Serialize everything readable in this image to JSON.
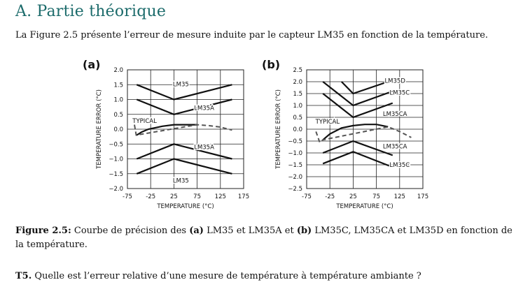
{
  "section_heading": "A. Partie théorique",
  "intro_text": "La Figure 2.5 présente l’erreur de mesure induite par le capteur LM35 en fonction de la température.",
  "caption": {
    "label": "Figure 2.5:",
    "text_1": " Courbe de précision des ",
    "a": "(a)",
    "text_2": " LM35 et LM35A et ",
    "b": "(b)",
    "text_3": " LM35C, LM35CA et LM35D en fonction de la température."
  },
  "question": {
    "label": "T5.",
    "text": " Quelle est l’erreur relative d’une mesure de température à température ambiante ?"
  },
  "chart_data": [
    {
      "panel_label": "(a)",
      "type": "line",
      "xlabel": "TEMPERATURE (°C)",
      "ylabel": "TEMPERATURE ERROR (°C)",
      "xlim": [
        -75,
        175
      ],
      "ylim": [
        -2.0,
        2.0
      ],
      "xticks": [
        -75,
        -25,
        25,
        75,
        125,
        175
      ],
      "yticks": [
        -2.0,
        -1.5,
        -1.0,
        -0.5,
        0.0,
        0.5,
        1.0,
        1.5,
        2.0
      ],
      "ytick_labels": [
        "−2.0",
        "−1.5",
        "−1.0",
        "−0.5",
        "0.0",
        "0.5",
        "1.0",
        "1.5",
        "2.0"
      ],
      "series": [
        {
          "label": "LM35",
          "style": "solid",
          "x": [
            -55,
            25,
            150
          ],
          "y": [
            1.5,
            1.0,
            1.5
          ]
        },
        {
          "label": "LM35A",
          "style": "solid",
          "x": [
            -55,
            25,
            150
          ],
          "y": [
            1.0,
            0.5,
            1.0
          ]
        },
        {
          "label": "LM35A",
          "style": "solid",
          "x": [
            -55,
            25,
            150
          ],
          "y": [
            -1.0,
            -0.5,
            -1.0
          ]
        },
        {
          "label": "LM35",
          "style": "solid",
          "x": [
            -55,
            25,
            150
          ],
          "y": [
            -1.5,
            -1.0,
            -1.5
          ]
        },
        {
          "label": "TYPICAL",
          "style": "solid",
          "x": [
            -55,
            -45,
            -30,
            0,
            25,
            50,
            75
          ],
          "y": [
            -0.2,
            -0.1,
            0.0,
            0.1,
            0.15,
            0.15,
            0.15
          ]
        },
        {
          "label": "",
          "style": "dashed",
          "x": [
            -60,
            -56,
            75,
            100,
            125,
            150
          ],
          "y": [
            0.15,
            -0.2,
            0.15,
            0.12,
            0.07,
            -0.03
          ]
        }
      ],
      "annotations": [
        {
          "text": "LM35",
          "x": 40,
          "y": 1.52
        },
        {
          "text": "LM35A",
          "x": 90,
          "y": 0.72
        },
        {
          "text": "TYPICAL",
          "x": -38,
          "y": 0.28
        },
        {
          "text": "LM35A",
          "x": 90,
          "y": -0.6
        },
        {
          "text": "LM35",
          "x": 40,
          "y": -1.73
        }
      ]
    },
    {
      "panel_label": "(b)",
      "type": "line",
      "xlabel": "TEMPERATURE (°C)",
      "ylabel": "TEMPERATURE ERROR (°C)",
      "xlim": [
        -75,
        175
      ],
      "ylim": [
        -2.5,
        2.5
      ],
      "xticks": [
        -75,
        -25,
        25,
        75,
        125,
        175
      ],
      "yticks": [
        -2.5,
        -2.0,
        -1.5,
        -1.0,
        -0.5,
        0.0,
        0.5,
        1.0,
        1.5,
        2.0,
        2.5
      ],
      "ytick_labels": [
        "−2.5",
        "−2.0",
        "−1.5",
        "−1.0",
        "−0.5",
        "0.0",
        "0.5",
        "1.0",
        "1.5",
        "2.0",
        "2.5"
      ],
      "series": [
        {
          "label": "LM35D",
          "style": "solid",
          "x": [
            0,
            25,
            100
          ],
          "y": [
            2.0,
            1.5,
            2.0
          ]
        },
        {
          "label": "LM35C",
          "style": "solid",
          "x": [
            -40,
            25,
            110
          ],
          "y": [
            2.0,
            1.0,
            1.6
          ]
        },
        {
          "label": "LM35CA",
          "style": "solid",
          "x": [
            -40,
            25,
            110
          ],
          "y": [
            1.5,
            0.5,
            1.1
          ]
        },
        {
          "label": "LM35CA",
          "style": "solid",
          "x": [
            -40,
            25,
            110
          ],
          "y": [
            -1.0,
            -0.5,
            -1.1
          ]
        },
        {
          "label": "LM35C",
          "style": "solid",
          "x": [
            -40,
            25,
            110
          ],
          "y": [
            -1.45,
            -0.95,
            -1.6
          ]
        },
        {
          "label": "TYPICAL",
          "style": "solid",
          "x": [
            -40,
            -25,
            0,
            25,
            50,
            75,
            100
          ],
          "y": [
            -0.45,
            -0.2,
            0.05,
            0.15,
            0.2,
            0.2,
            0.1
          ]
        },
        {
          "label": "",
          "style": "dashed",
          "x": [
            -55,
            -47,
            -40,
            100,
            125,
            150
          ],
          "y": [
            -0.1,
            -0.55,
            -0.45,
            0.1,
            -0.1,
            -0.35
          ]
        }
      ],
      "annotations": [
        {
          "text": "LM35D",
          "x": 115,
          "y": 2.05
        },
        {
          "text": "LM35C",
          "x": 125,
          "y": 1.55
        },
        {
          "text": "LM35CA",
          "x": 115,
          "y": 0.65
        },
        {
          "text": "TYPICAL",
          "x": -30,
          "y": 0.33
        },
        {
          "text": "LM35CA",
          "x": 115,
          "y": -0.72
        },
        {
          "text": "LM35C",
          "x": 125,
          "y": -1.5
        }
      ]
    }
  ]
}
